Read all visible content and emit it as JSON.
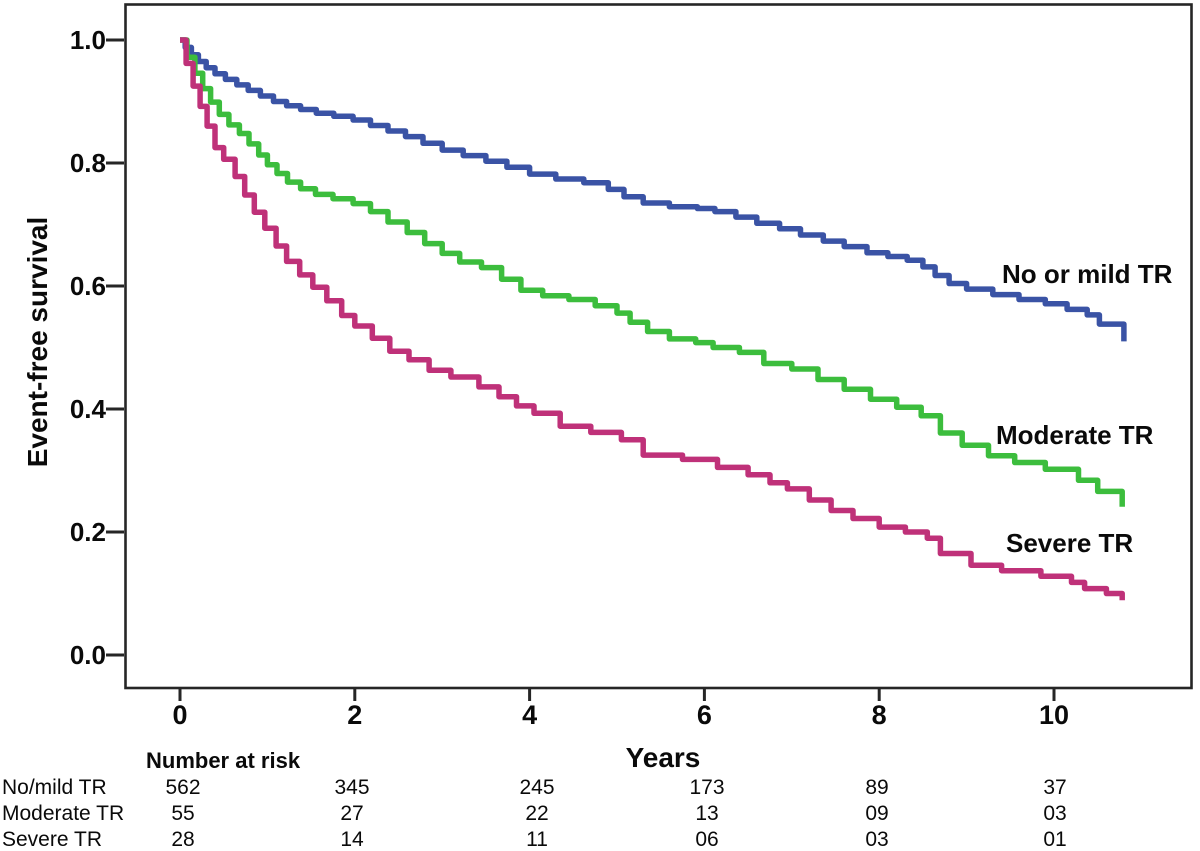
{
  "figure": {
    "background": "#ffffff",
    "axis_color": "#262626",
    "text_color": "#0a0a0a"
  },
  "chart_data": {
    "type": "line",
    "subtype": "kaplan-meier-step",
    "title": "",
    "xlabel": "Years",
    "ylabel": "Event-free survival",
    "x_ticks": [
      0,
      2,
      4,
      6,
      8,
      10
    ],
    "y_ticks": [
      1.0,
      0.8,
      0.6,
      0.4,
      0.2,
      0.0
    ],
    "xlim": [
      -0.63,
      11.58
    ],
    "ylim": [
      -0.05,
      1.06
    ],
    "grid": false,
    "legend_position": "end-of-line-labels",
    "series": [
      {
        "name": "No or mild TR",
        "color": "#3a53a5",
        "points": [
          [
            0,
            1.0
          ],
          [
            0.06,
            0.988
          ],
          [
            0.13,
            0.976
          ],
          [
            0.21,
            0.965
          ],
          [
            0.3,
            0.955
          ],
          [
            0.4,
            0.945
          ],
          [
            0.52,
            0.936
          ],
          [
            0.65,
            0.927
          ],
          [
            0.78,
            0.918
          ],
          [
            0.92,
            0.909
          ],
          [
            1.07,
            0.9
          ],
          [
            1.22,
            0.893
          ],
          [
            1.38,
            0.887
          ],
          [
            1.56,
            0.881
          ],
          [
            1.76,
            0.876
          ],
          [
            1.98,
            0.87
          ],
          [
            2.18,
            0.861
          ],
          [
            2.38,
            0.852
          ],
          [
            2.58,
            0.843
          ],
          [
            2.78,
            0.832
          ],
          [
            3.0,
            0.821
          ],
          [
            3.24,
            0.812
          ],
          [
            3.5,
            0.803
          ],
          [
            3.74,
            0.793
          ],
          [
            4.0,
            0.782
          ],
          [
            4.3,
            0.774
          ],
          [
            4.62,
            0.768
          ],
          [
            4.9,
            0.757
          ],
          [
            5.08,
            0.745
          ],
          [
            5.3,
            0.735
          ],
          [
            5.6,
            0.729
          ],
          [
            5.92,
            0.726
          ],
          [
            6.12,
            0.721
          ],
          [
            6.36,
            0.712
          ],
          [
            6.6,
            0.702
          ],
          [
            6.86,
            0.693
          ],
          [
            7.1,
            0.683
          ],
          [
            7.36,
            0.673
          ],
          [
            7.6,
            0.664
          ],
          [
            7.86,
            0.654
          ],
          [
            8.1,
            0.648
          ],
          [
            8.32,
            0.642
          ],
          [
            8.5,
            0.631
          ],
          [
            8.64,
            0.617
          ],
          [
            8.8,
            0.604
          ],
          [
            9.0,
            0.595
          ],
          [
            9.3,
            0.586
          ],
          [
            9.6,
            0.578
          ],
          [
            9.9,
            0.571
          ],
          [
            10.15,
            0.562
          ],
          [
            10.38,
            0.553
          ],
          [
            10.52,
            0.538
          ],
          [
            10.8,
            0.51
          ]
        ]
      },
      {
        "name": "Moderate TR",
        "color": "#3cbd3d",
        "points": [
          [
            0,
            1.0
          ],
          [
            0.08,
            0.972
          ],
          [
            0.17,
            0.946
          ],
          [
            0.26,
            0.921
          ],
          [
            0.35,
            0.899
          ],
          [
            0.45,
            0.879
          ],
          [
            0.56,
            0.862
          ],
          [
            0.68,
            0.848
          ],
          [
            0.79,
            0.831
          ],
          [
            0.9,
            0.813
          ],
          [
            1.0,
            0.797
          ],
          [
            1.11,
            0.783
          ],
          [
            1.23,
            0.769
          ],
          [
            1.38,
            0.758
          ],
          [
            1.55,
            0.749
          ],
          [
            1.75,
            0.742
          ],
          [
            1.98,
            0.734
          ],
          [
            2.18,
            0.721
          ],
          [
            2.38,
            0.704
          ],
          [
            2.6,
            0.687
          ],
          [
            2.8,
            0.669
          ],
          [
            3.0,
            0.653
          ],
          [
            3.2,
            0.639
          ],
          [
            3.45,
            0.63
          ],
          [
            3.68,
            0.611
          ],
          [
            3.9,
            0.593
          ],
          [
            4.15,
            0.584
          ],
          [
            4.45,
            0.578
          ],
          [
            4.75,
            0.568
          ],
          [
            5.0,
            0.556
          ],
          [
            5.15,
            0.541
          ],
          [
            5.35,
            0.526
          ],
          [
            5.6,
            0.514
          ],
          [
            5.9,
            0.508
          ],
          [
            6.1,
            0.5
          ],
          [
            6.4,
            0.492
          ],
          [
            6.68,
            0.474
          ],
          [
            7.0,
            0.465
          ],
          [
            7.3,
            0.448
          ],
          [
            7.6,
            0.432
          ],
          [
            7.9,
            0.416
          ],
          [
            8.2,
            0.403
          ],
          [
            8.48,
            0.389
          ],
          [
            8.7,
            0.361
          ],
          [
            8.95,
            0.341
          ],
          [
            9.25,
            0.324
          ],
          [
            9.55,
            0.313
          ],
          [
            9.9,
            0.302
          ],
          [
            10.28,
            0.284
          ],
          [
            10.5,
            0.266
          ],
          [
            10.78,
            0.241
          ]
        ]
      },
      {
        "name": "Severe TR",
        "color": "#bf3179",
        "points": [
          [
            0,
            1.0
          ],
          [
            0.07,
            0.962
          ],
          [
            0.15,
            0.925
          ],
          [
            0.23,
            0.892
          ],
          [
            0.31,
            0.86
          ],
          [
            0.4,
            0.825
          ],
          [
            0.5,
            0.806
          ],
          [
            0.63,
            0.778
          ],
          [
            0.74,
            0.748
          ],
          [
            0.85,
            0.72
          ],
          [
            0.97,
            0.694
          ],
          [
            1.1,
            0.665
          ],
          [
            1.22,
            0.64
          ],
          [
            1.37,
            0.618
          ],
          [
            1.52,
            0.598
          ],
          [
            1.68,
            0.576
          ],
          [
            1.85,
            0.552
          ],
          [
            2.0,
            0.535
          ],
          [
            2.2,
            0.515
          ],
          [
            2.4,
            0.494
          ],
          [
            2.62,
            0.48
          ],
          [
            2.85,
            0.463
          ],
          [
            3.1,
            0.452
          ],
          [
            3.42,
            0.436
          ],
          [
            3.65,
            0.42
          ],
          [
            3.85,
            0.405
          ],
          [
            4.05,
            0.393
          ],
          [
            4.35,
            0.372
          ],
          [
            4.7,
            0.362
          ],
          [
            5.05,
            0.35
          ],
          [
            5.3,
            0.325
          ],
          [
            5.75,
            0.318
          ],
          [
            6.15,
            0.305
          ],
          [
            6.5,
            0.293
          ],
          [
            6.75,
            0.28
          ],
          [
            6.95,
            0.27
          ],
          [
            7.2,
            0.252
          ],
          [
            7.45,
            0.235
          ],
          [
            7.7,
            0.222
          ],
          [
            8.0,
            0.208
          ],
          [
            8.3,
            0.2
          ],
          [
            8.55,
            0.19
          ],
          [
            8.7,
            0.165
          ],
          [
            9.05,
            0.146
          ],
          [
            9.4,
            0.137
          ],
          [
            9.85,
            0.128
          ],
          [
            10.2,
            0.118
          ],
          [
            10.35,
            0.108
          ],
          [
            10.6,
            0.1
          ],
          [
            10.78,
            0.089
          ]
        ]
      }
    ]
  },
  "risk_table": {
    "header": "Number at risk",
    "rows": [
      {
        "label": "No/mild TR",
        "values": [
          "562",
          "345",
          "245",
          "173",
          "89",
          "37"
        ]
      },
      {
        "label": "Moderate TR",
        "values": [
          "55",
          "27",
          "22",
          "13",
          "09",
          "03"
        ]
      },
      {
        "label": "Severe TR",
        "values": [
          "28",
          "14",
          "11",
          "06",
          "03",
          "01"
        ]
      }
    ]
  }
}
